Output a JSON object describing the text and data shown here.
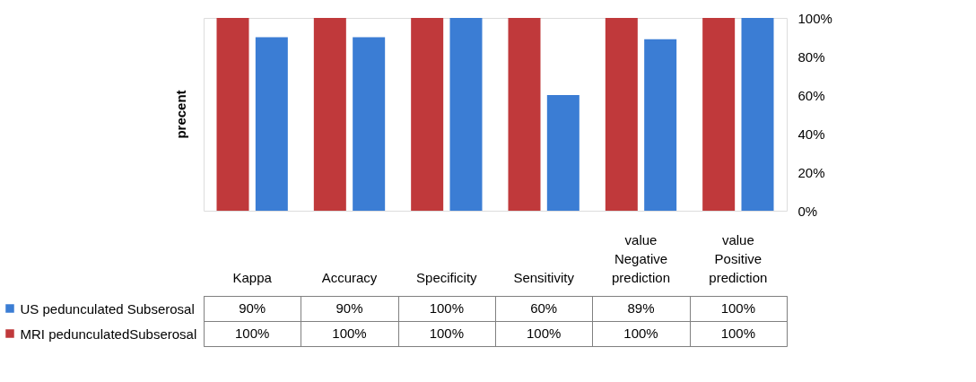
{
  "chart_data": {
    "type": "bar",
    "ylabel": "precent",
    "categories": [
      "Kappa",
      "Accuracy",
      "Specificity",
      "Sensitivity",
      "value Negative prediction",
      "value Positive prediction"
    ],
    "series": [
      {
        "name": "MRI  pedunculatedSubserosal",
        "color": "#c0393b",
        "values": [
          100,
          100,
          100,
          100,
          100,
          100
        ],
        "value_labels": [
          "100%",
          "100%",
          "100%",
          "100%",
          "100%",
          "100%"
        ]
      },
      {
        "name": "US  pedunculated Subserosal",
        "color": "#3b7dd4",
        "values": [
          90,
          90,
          100,
          60,
          89,
          100
        ],
        "value_labels": [
          "90%",
          "90%",
          "100%",
          "60%",
          "89%",
          "100%"
        ]
      }
    ],
    "ylim": [
      0,
      100
    ],
    "yticks": [
      {
        "value": 0,
        "label": "0%"
      },
      {
        "value": 20,
        "label": "20%"
      },
      {
        "value": 40,
        "label": "40%"
      },
      {
        "value": 60,
        "label": "60%"
      },
      {
        "value": 80,
        "label": "80%"
      },
      {
        "value": 100,
        "label": "100%"
      }
    ],
    "grid": false,
    "legend": "bottom"
  }
}
